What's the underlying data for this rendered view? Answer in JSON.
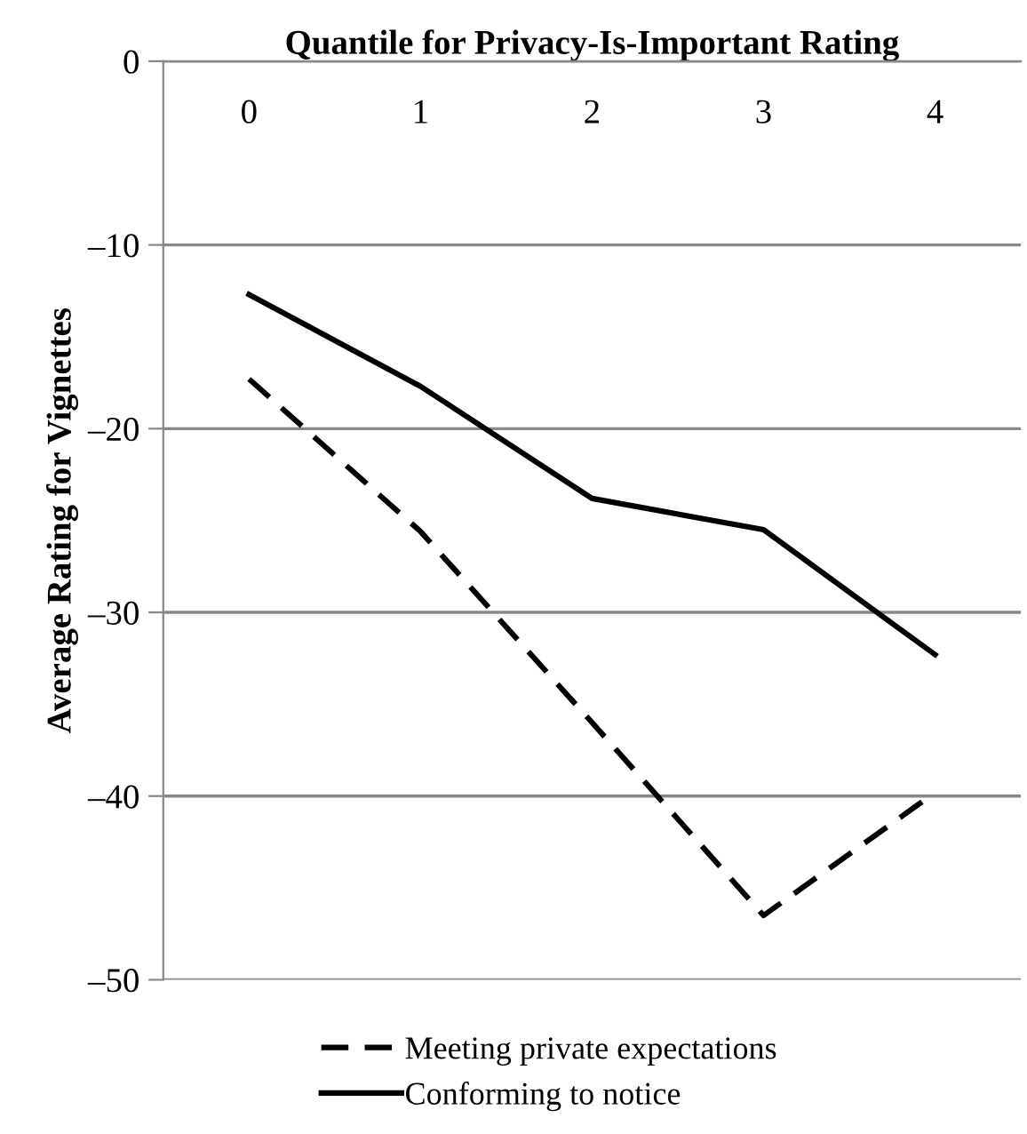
{
  "chart_data": {
    "type": "line",
    "xlabel": "Quantile for Privacy-Is-Important Rating",
    "ylabel": "Average Rating for Vignettes",
    "categories": [
      "0",
      "1",
      "2",
      "3",
      "4"
    ],
    "series": [
      {
        "name": "Meeting private expectations",
        "color": "#000000",
        "line_style": "dashed",
        "values": [
          -17.3,
          -25.6,
          -36,
          -46.5,
          -39.8
        ]
      },
      {
        "name": "Conforming to notice",
        "color": "#000000",
        "line_style": "solid",
        "values": [
          -12.7,
          -17.7,
          -23.8,
          -25.5,
          -32.3
        ]
      }
    ],
    "ylim": [
      -50,
      0
    ],
    "yticks": [
      {
        "value": 0,
        "label": "0"
      },
      {
        "value": -10,
        "label": "–10"
      },
      {
        "value": -20,
        "label": "–20"
      },
      {
        "value": -30,
        "label": "–30"
      },
      {
        "value": -40,
        "label": "–40"
      },
      {
        "value": -50,
        "label": "–50"
      }
    ],
    "grid": "y",
    "legend": "bottom"
  }
}
